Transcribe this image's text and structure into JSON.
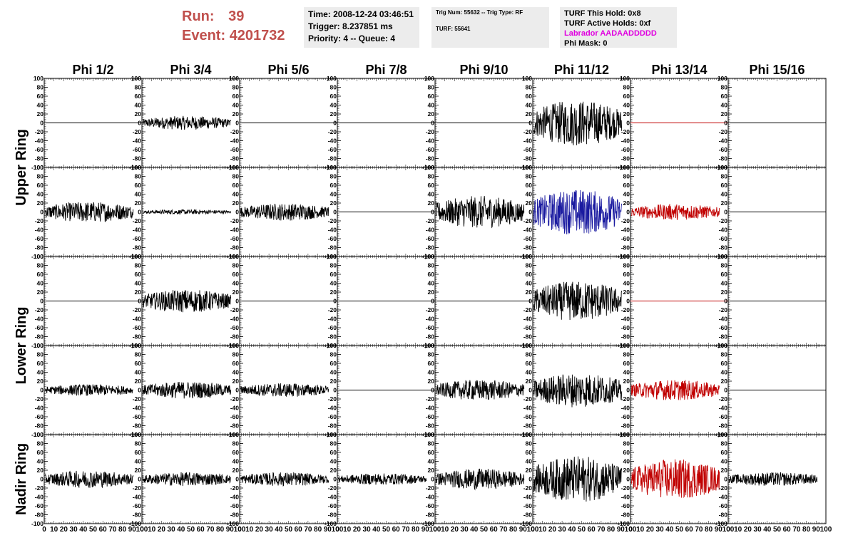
{
  "header": {
    "run_label": "Run:",
    "run_value": "39",
    "event_label": "Event:",
    "event_value": "4201732",
    "time": "Time: 2008-12-24 03:46:51",
    "trigger": "Trigger: 8.237851 ms",
    "priority": "Priority: 4 -- Queue: 4",
    "trig_num": "Trig Num: 55632 -- Trig Type: RF",
    "turf": "TURF: 55641",
    "turf_this_hold": "TURF This Hold: 0x8",
    "turf_active_holds": "TURF Active Holds: 0xf",
    "labrador": "Labrador AADAADDDDD",
    "phi_mask": "Phi Mask: 0"
  },
  "colors": {
    "run_text": "#c0504d",
    "labrador_text": "#e000e0",
    "trace_black": "#000000",
    "trace_red": "#c00000",
    "trace_blue": "#1a1aa0"
  },
  "chart_data": {
    "type": "line",
    "columns": [
      "Phi 1/2",
      "Phi 3/4",
      "Phi 5/6",
      "Phi 7/8",
      "Phi 9/10",
      "Phi 11/12",
      "Phi 13/14",
      "Phi 15/16"
    ],
    "ring_labels": [
      "Upper Ring",
      "Lower Ring",
      "Nadir Ring"
    ],
    "xlim": [
      0,
      100
    ],
    "ylim": [
      -100,
      100
    ],
    "x_ticks": [
      0,
      10,
      20,
      30,
      40,
      50,
      60,
      70,
      80,
      90,
      100
    ],
    "y_ticks": [
      -100,
      -80,
      -60,
      -40,
      -20,
      0,
      20,
      40,
      60,
      80,
      100
    ],
    "rows": [
      {
        "amplitudes": [
          0,
          12,
          0,
          0,
          0,
          40,
          0,
          0
        ],
        "colors": [
          "black",
          "black",
          "black",
          "black",
          "black",
          "black",
          "red",
          "black"
        ]
      },
      {
        "amplitudes": [
          18,
          4,
          15,
          0,
          28,
          40,
          14,
          0
        ],
        "colors": [
          "black",
          "black",
          "black",
          "black",
          "black",
          "blue",
          "red",
          "black"
        ]
      },
      {
        "amplitudes": [
          0,
          20,
          0,
          0,
          0,
          35,
          0,
          0
        ],
        "colors": [
          "black",
          "black",
          "black",
          "black",
          "black",
          "black",
          "red",
          "black"
        ]
      },
      {
        "amplitudes": [
          10,
          15,
          12,
          0,
          18,
          30,
          18,
          0
        ],
        "colors": [
          "black",
          "black",
          "black",
          "black",
          "black",
          "black",
          "red",
          "black"
        ]
      },
      {
        "amplitudes": [
          15,
          12,
          12,
          10,
          18,
          40,
          35,
          12
        ],
        "colors": [
          "black",
          "black",
          "black",
          "black",
          "black",
          "black",
          "red",
          "black"
        ]
      }
    ]
  }
}
